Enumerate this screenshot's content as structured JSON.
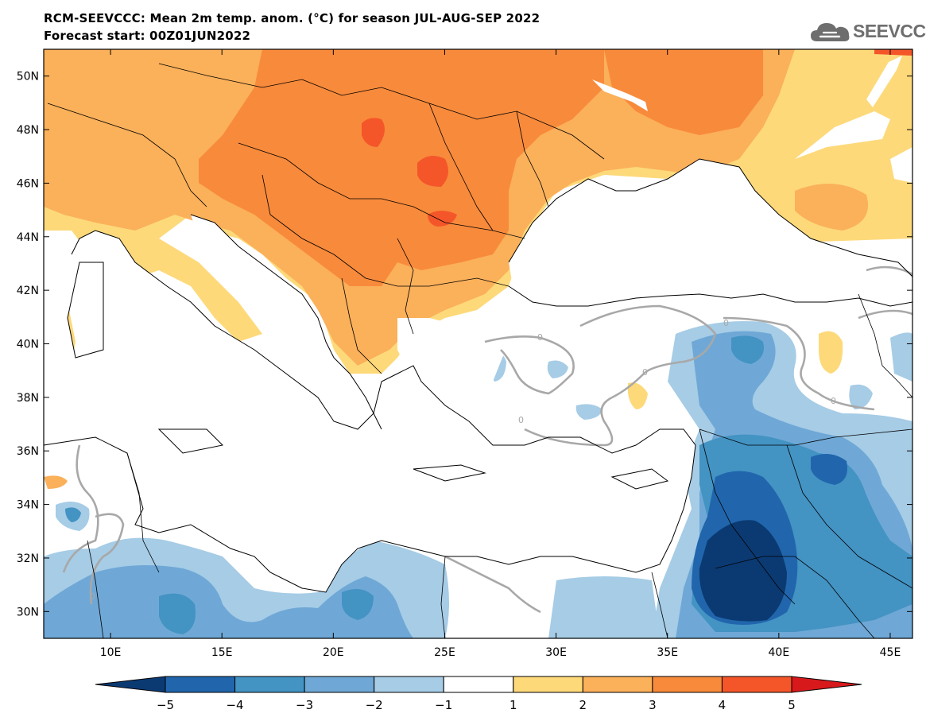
{
  "header": {
    "title": "RCM-SEEVCCC: Mean 2m temp. anom. (°C) for season JUL-AUG-SEP 2022",
    "forecast_start": "Forecast start: 00Z01JUN2022"
  },
  "logo": {
    "text": "SEEVCCC",
    "icon": "cloud-icon"
  },
  "map": {
    "lat_ticks": [
      {
        "value": 30,
        "label": "30N"
      },
      {
        "value": 32,
        "label": "32N"
      },
      {
        "value": 34,
        "label": "34N"
      },
      {
        "value": 36,
        "label": "36N"
      },
      {
        "value": 38,
        "label": "38N"
      },
      {
        "value": 40,
        "label": "40N"
      },
      {
        "value": 42,
        "label": "42N"
      },
      {
        "value": 44,
        "label": "44N"
      },
      {
        "value": 46,
        "label": "46N"
      },
      {
        "value": 48,
        "label": "48N"
      },
      {
        "value": 50,
        "label": "50N"
      }
    ],
    "lon_ticks": [
      {
        "value": 10,
        "label": "10E"
      },
      {
        "value": 15,
        "label": "15E"
      },
      {
        "value": 20,
        "label": "20E"
      },
      {
        "value": 25,
        "label": "25E"
      },
      {
        "value": 30,
        "label": "30E"
      },
      {
        "value": 35,
        "label": "35E"
      },
      {
        "value": 40,
        "label": "40E"
      },
      {
        "value": 45,
        "label": "45E"
      }
    ],
    "lon_range": [
      7,
      46
    ],
    "lat_range": [
      29,
      51
    ],
    "contour_label": "0"
  },
  "colorbar": {
    "levels": [
      "−5",
      "−4",
      "−3",
      "−2",
      "−1",
      "1",
      "2",
      "3",
      "4",
      "5"
    ],
    "colors": [
      "#0b3a73",
      "#2166ac",
      "#4393c3",
      "#6fa8d6",
      "#a6cce6",
      "#ffffff",
      "#fdd97a",
      "#fbb05a",
      "#f88a3b",
      "#f4562a",
      "#d7191c"
    ]
  }
}
